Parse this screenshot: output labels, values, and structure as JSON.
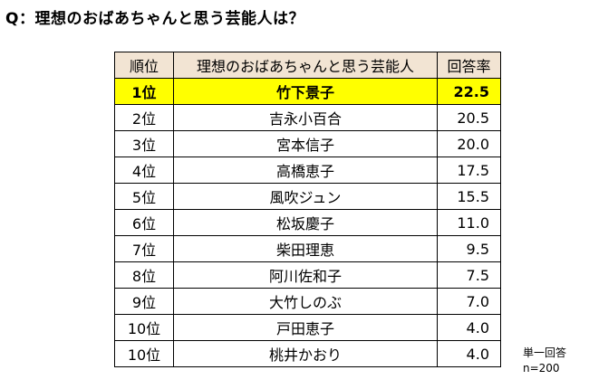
{
  "chart_data": {
    "type": "table",
    "title": "Q：理想のおばあちゃんと思う芸能人は？",
    "columns": [
      "順位",
      "理想のおばあちゃんと思う芸能人",
      "回答率"
    ],
    "rows": [
      {
        "rank": "1位",
        "name": "竹下景子",
        "rate": "22.5",
        "value": 22.5,
        "highlight": true
      },
      {
        "rank": "2位",
        "name": "吉永小百合",
        "rate": "20.5",
        "value": 20.5,
        "highlight": false
      },
      {
        "rank": "3位",
        "name": "宮本信子",
        "rate": "20.0",
        "value": 20.0,
        "highlight": false
      },
      {
        "rank": "4位",
        "name": "高橋恵子",
        "rate": "17.5",
        "value": 17.5,
        "highlight": false
      },
      {
        "rank": "5位",
        "name": "風吹ジュン",
        "rate": "15.5",
        "value": 15.5,
        "highlight": false
      },
      {
        "rank": "6位",
        "name": "松坂慶子",
        "rate": "11.0",
        "value": 11.0,
        "highlight": false
      },
      {
        "rank": "7位",
        "name": "柴田理恵",
        "rate": "9.5",
        "value": 9.5,
        "highlight": false
      },
      {
        "rank": "8位",
        "name": "阿川佐和子",
        "rate": "7.5",
        "value": 7.5,
        "highlight": false
      },
      {
        "rank": "9位",
        "name": "大竹しのぶ",
        "rate": "7.0",
        "value": 7.0,
        "highlight": false
      },
      {
        "rank": "10位",
        "name": "戸田恵子",
        "rate": "4.0",
        "value": 4.0,
        "highlight": false
      },
      {
        "rank": "10位",
        "name": "桃井かおり",
        "rate": "4.0",
        "value": 4.0,
        "highlight": false
      }
    ],
    "notes": [
      "単一回答",
      "n=200"
    ]
  },
  "colors": {
    "header_background": "#f2e4d3",
    "highlight_background": "#ffff00",
    "border": "#000000"
  }
}
